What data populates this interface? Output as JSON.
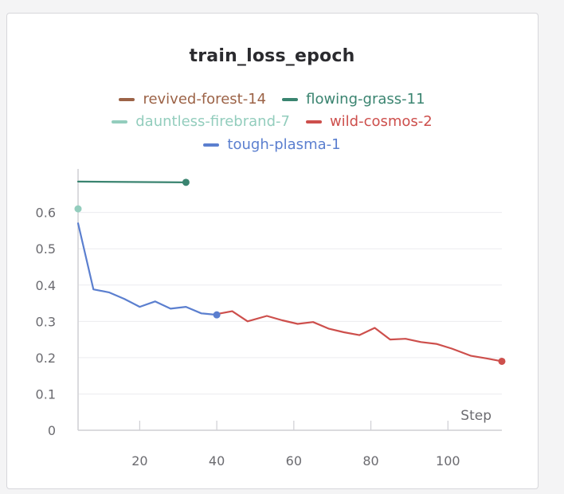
{
  "chart_data": {
    "type": "line",
    "title": "train_loss_epoch",
    "xlabel": "Step",
    "ylabel": "",
    "xlim": [
      4,
      114
    ],
    "ylim": [
      0,
      0.72
    ],
    "x_ticks": [
      20,
      40,
      60,
      80,
      100
    ],
    "y_ticks": [
      0,
      0.1,
      0.2,
      0.3,
      0.4,
      0.5,
      0.6
    ],
    "y_tick_labels": [
      "0",
      "0.1",
      "0.2",
      "0.3",
      "0.4",
      "0.5",
      "0.6"
    ],
    "grid": true,
    "legend_position": "top",
    "series": [
      {
        "name": "revived-forest-14",
        "color": "#9c6347",
        "x": [],
        "y": []
      },
      {
        "name": "flowing-grass-11",
        "color": "#3a8470",
        "x": [
          4,
          32
        ],
        "y": [
          0.685,
          0.683
        ]
      },
      {
        "name": "dauntless-firebrand-7",
        "color": "#93cdbd",
        "x": [
          4
        ],
        "y": [
          0.61
        ]
      },
      {
        "name": "wild-cosmos-2",
        "color": "#cd4f4c",
        "x": [
          40,
          44,
          48,
          53,
          57,
          61,
          65,
          69,
          73,
          77,
          81,
          85,
          89,
          93,
          97,
          101,
          106,
          110,
          114
        ],
        "y": [
          0.32,
          0.328,
          0.3,
          0.315,
          0.303,
          0.293,
          0.298,
          0.28,
          0.27,
          0.262,
          0.282,
          0.25,
          0.252,
          0.243,
          0.238,
          0.225,
          0.205,
          0.198,
          0.19
        ]
      },
      {
        "name": "tough-plasma-1",
        "color": "#5b7fcf",
        "x": [
          4,
          8,
          12,
          16,
          20,
          24,
          28,
          32,
          36,
          40
        ],
        "y": [
          0.57,
          0.388,
          0.38,
          0.362,
          0.34,
          0.355,
          0.335,
          0.34,
          0.322,
          0.318
        ]
      }
    ]
  }
}
